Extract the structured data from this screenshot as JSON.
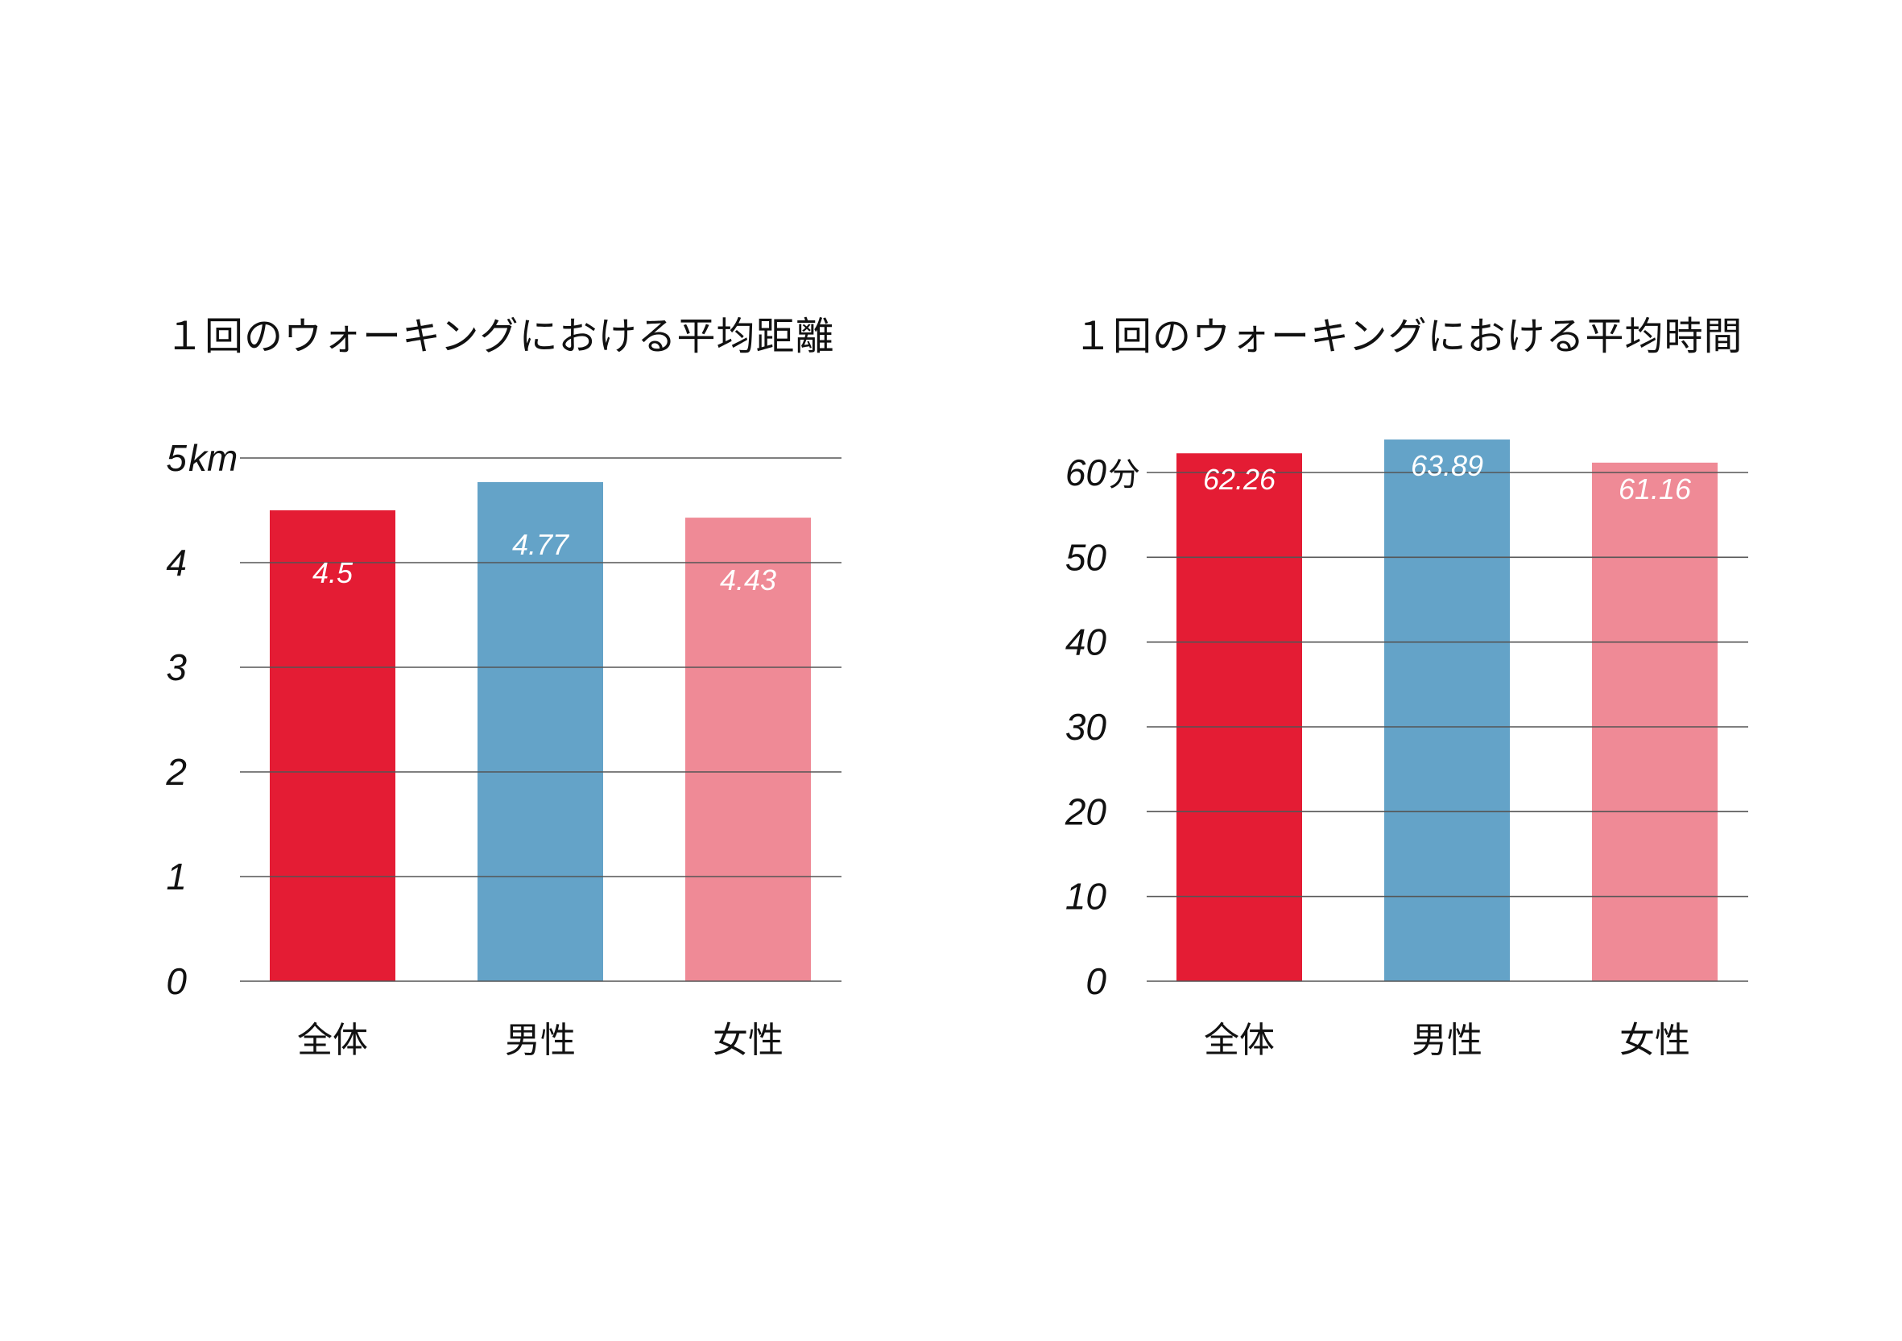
{
  "colors": {
    "total": "#e41c34",
    "male": "#64a3c8",
    "female": "#ef8a96",
    "grid": "#555555",
    "value_label": "#ffffff"
  },
  "chart_data": [
    {
      "type": "bar",
      "title": "１回のウォーキングにおける平均距離",
      "categories": [
        "全体",
        "男性",
        "女性"
      ],
      "values": [
        4.5,
        4.77,
        4.43
      ],
      "value_labels": [
        "4.5",
        "4.77",
        "4.43"
      ],
      "ylim": [
        0,
        5
      ],
      "yticks": [
        0,
        1,
        2,
        3,
        4,
        5
      ],
      "ytick_labels": [
        "0",
        "1",
        "2",
        "3",
        "4",
        "5"
      ],
      "ytick_unit": "km",
      "grid": true,
      "value_label_position": "inside-top"
    },
    {
      "type": "bar",
      "title": "１回のウォーキングにおける平均時間",
      "categories": [
        "全体",
        "男性",
        "女性"
      ],
      "values": [
        62.26,
        63.89,
        61.16
      ],
      "value_labels": [
        "62.26",
        "63.89",
        "61.16"
      ],
      "ylim": [
        0,
        60
      ],
      "yticks": [
        0,
        10,
        20,
        30,
        40,
        50,
        60
      ],
      "ytick_labels": [
        "0",
        "10",
        "20",
        "30",
        "40",
        "50",
        "60"
      ],
      "ytick_unit": "分",
      "grid": true,
      "value_label_position": "inside-top"
    }
  ]
}
